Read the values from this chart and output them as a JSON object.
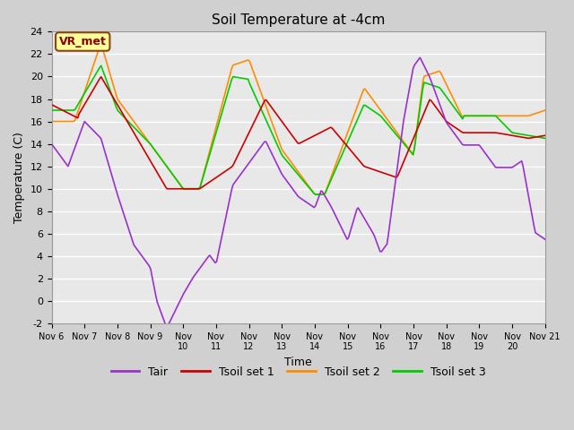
{
  "title": "Soil Temperature at -4cm",
  "xlabel": "Time",
  "ylabel": "Temperature (C)",
  "ylim": [
    -2,
    24
  ],
  "background_color": "#e8e8e8",
  "annotation_text": "VR_met",
  "annotation_box_color": "#ffff99",
  "annotation_border_color": "#8B4513",
  "legend_labels": [
    "Tair",
    "Tsoil set 1",
    "Tsoil set 2",
    "Tsoil set 3"
  ],
  "line_colors": [
    "#9932CC",
    "#CC0000",
    "#FF8C00",
    "#00CC00"
  ],
  "xtick_labels": [
    "Nov 6",
    "Nov 7",
    "Nov 8",
    "Nov 9",
    "Nov 9",
    "Nov 10",
    "Nov 11",
    "Nov 12",
    "Nov 13",
    "Nov 14",
    "Nov 15",
    "Nov 16",
    "Nov 17",
    "Nov 18",
    "Nov 19",
    "Nov 20",
    "Nov 21"
  ],
  "ytick_values": [
    -2,
    0,
    2,
    4,
    6,
    8,
    10,
    12,
    14,
    16,
    18,
    20,
    22,
    24
  ]
}
